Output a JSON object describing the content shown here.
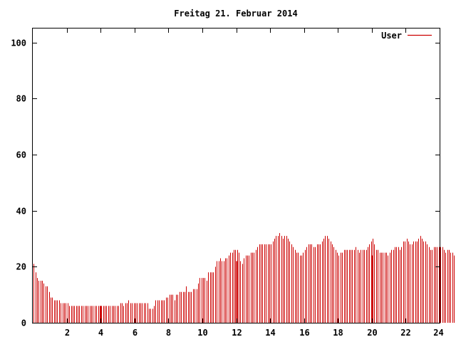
{
  "chart_data": {
    "type": "bar",
    "title": "Freitag 21. Februar 2014",
    "xlabel": "",
    "ylabel": "",
    "xlim": [
      0,
      24
    ],
    "ylim": [
      0,
      105
    ],
    "x_ticks": [
      2,
      4,
      6,
      8,
      10,
      12,
      14,
      16,
      18,
      20,
      22,
      24
    ],
    "y_ticks": [
      0,
      20,
      40,
      60,
      80,
      100
    ],
    "grid": false,
    "legend_position": "top-right",
    "bar_color": "#cc0000",
    "series": [
      {
        "name": "User",
        "color": "#cc0000",
        "interval_hours": 0.1,
        "start_hour": 0.05,
        "values": [
          21,
          18,
          16,
          15,
          15,
          15,
          14,
          13,
          13,
          11,
          9,
          9,
          8,
          8,
          8,
          8,
          7,
          7,
          7,
          7,
          7,
          6,
          6,
          6,
          6,
          6,
          6,
          6,
          6,
          6,
          6,
          6,
          6,
          6,
          6,
          6,
          6,
          6,
          6,
          6,
          6,
          6,
          6,
          6,
          6,
          6,
          6,
          6,
          6,
          6,
          6,
          7,
          7,
          6,
          7,
          7,
          8,
          7,
          7,
          7,
          7,
          7,
          7,
          7,
          7,
          7,
          7,
          7,
          5,
          5,
          5,
          6,
          8,
          8,
          8,
          8,
          8,
          8,
          9,
          9,
          10,
          10,
          10,
          8,
          10,
          10,
          11,
          11,
          11,
          11,
          13,
          11,
          11,
          11,
          12,
          12,
          12,
          14,
          16,
          16,
          16,
          16,
          15,
          18,
          18,
          18,
          18,
          20,
          22,
          22,
          23,
          22,
          22,
          23,
          23,
          24,
          25,
          25,
          26,
          26,
          26,
          25,
          22,
          21,
          23,
          24,
          24,
          24,
          25,
          25,
          25,
          26,
          27,
          28,
          28,
          28,
          28,
          28,
          28,
          28,
          28,
          29,
          30,
          31,
          31,
          32,
          31,
          30,
          31,
          31,
          30,
          29,
          28,
          27,
          26,
          25,
          25,
          24,
          24,
          25,
          26,
          27,
          28,
          28,
          28,
          27,
          27,
          28,
          28,
          28,
          29,
          30,
          31,
          31,
          30,
          29,
          28,
          27,
          26,
          25,
          24,
          25,
          25,
          26,
          26,
          26,
          26,
          26,
          26,
          26,
          27,
          26,
          25,
          26,
          26,
          26,
          26,
          27,
          28,
          29,
          30,
          28,
          26,
          26,
          25,
          25,
          25,
          25,
          25,
          24,
          25,
          26,
          26,
          27,
          27,
          27,
          26,
          27,
          29,
          29,
          30,
          29,
          28,
          28,
          29,
          29,
          29,
          30,
          31,
          30,
          29,
          29,
          28,
          27,
          26,
          26,
          27,
          27,
          27,
          27,
          27,
          27,
          26,
          25,
          26,
          26,
          25,
          25,
          24,
          22
        ],
        "spikes": [
          {
            "x": 4.0,
            "value": 6
          },
          {
            "x": 12.0,
            "value": 22
          },
          {
            "x": 20.0,
            "value": 24
          }
        ]
      }
    ]
  }
}
